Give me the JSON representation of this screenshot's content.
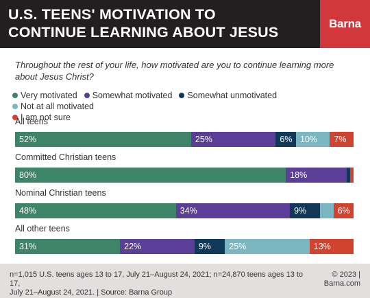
{
  "header": {
    "title_line1": "U.S. TEENS' MOTIVATION TO",
    "title_line2": "CONTINUE LEARNING ABOUT JESUS",
    "logo": "Barna"
  },
  "question": "Throughout the rest of your life, how motivated are you to continue learning more about Jesus Christ?",
  "footer": {
    "note_line1": "n=1,015 U.S. teens ages 13 to 17, July 21–August 24, 2021; n=24,870 teens ages 13 to 17,",
    "note_line2": "July 21–August 24, 2021. | Source: Barna Group",
    "copyright_line1": "© 2023 |",
    "copyright_line2": "Barna.com"
  },
  "chart_data": {
    "type": "bar",
    "orientation": "horizontal",
    "stacked": true,
    "xlim": [
      0,
      100
    ],
    "legend_position": "top",
    "categories": [
      "All teens",
      "Committed Christian teens",
      "Nominal Christian teens",
      "All other teens"
    ],
    "series": [
      {
        "name": "Very motivated",
        "color": "#3e8468",
        "values": [
          52,
          80,
          48,
          31
        ],
        "labels": [
          "52%",
          "80%",
          "48%",
          "31%"
        ]
      },
      {
        "name": "Somewhat motivated",
        "color": "#5b3e98",
        "values": [
          25,
          18,
          34,
          22
        ],
        "labels": [
          "25%",
          "18%",
          "34%",
          "22%"
        ]
      },
      {
        "name": "Somewhat unmotivated",
        "color": "#0f3859",
        "values": [
          6,
          1,
          9,
          9
        ],
        "labels": [
          "6%",
          "",
          "9%",
          "9%"
        ]
      },
      {
        "name": "Not at all motivated",
        "color": "#7ab7c1",
        "values": [
          10,
          0,
          4,
          25
        ],
        "labels": [
          "10%",
          "",
          "",
          "25%"
        ]
      },
      {
        "name": "I am not sure",
        "color": "#d1432f",
        "values": [
          7,
          1,
          6,
          13
        ],
        "labels": [
          "7%",
          "",
          "6%",
          "13%"
        ]
      }
    ]
  }
}
